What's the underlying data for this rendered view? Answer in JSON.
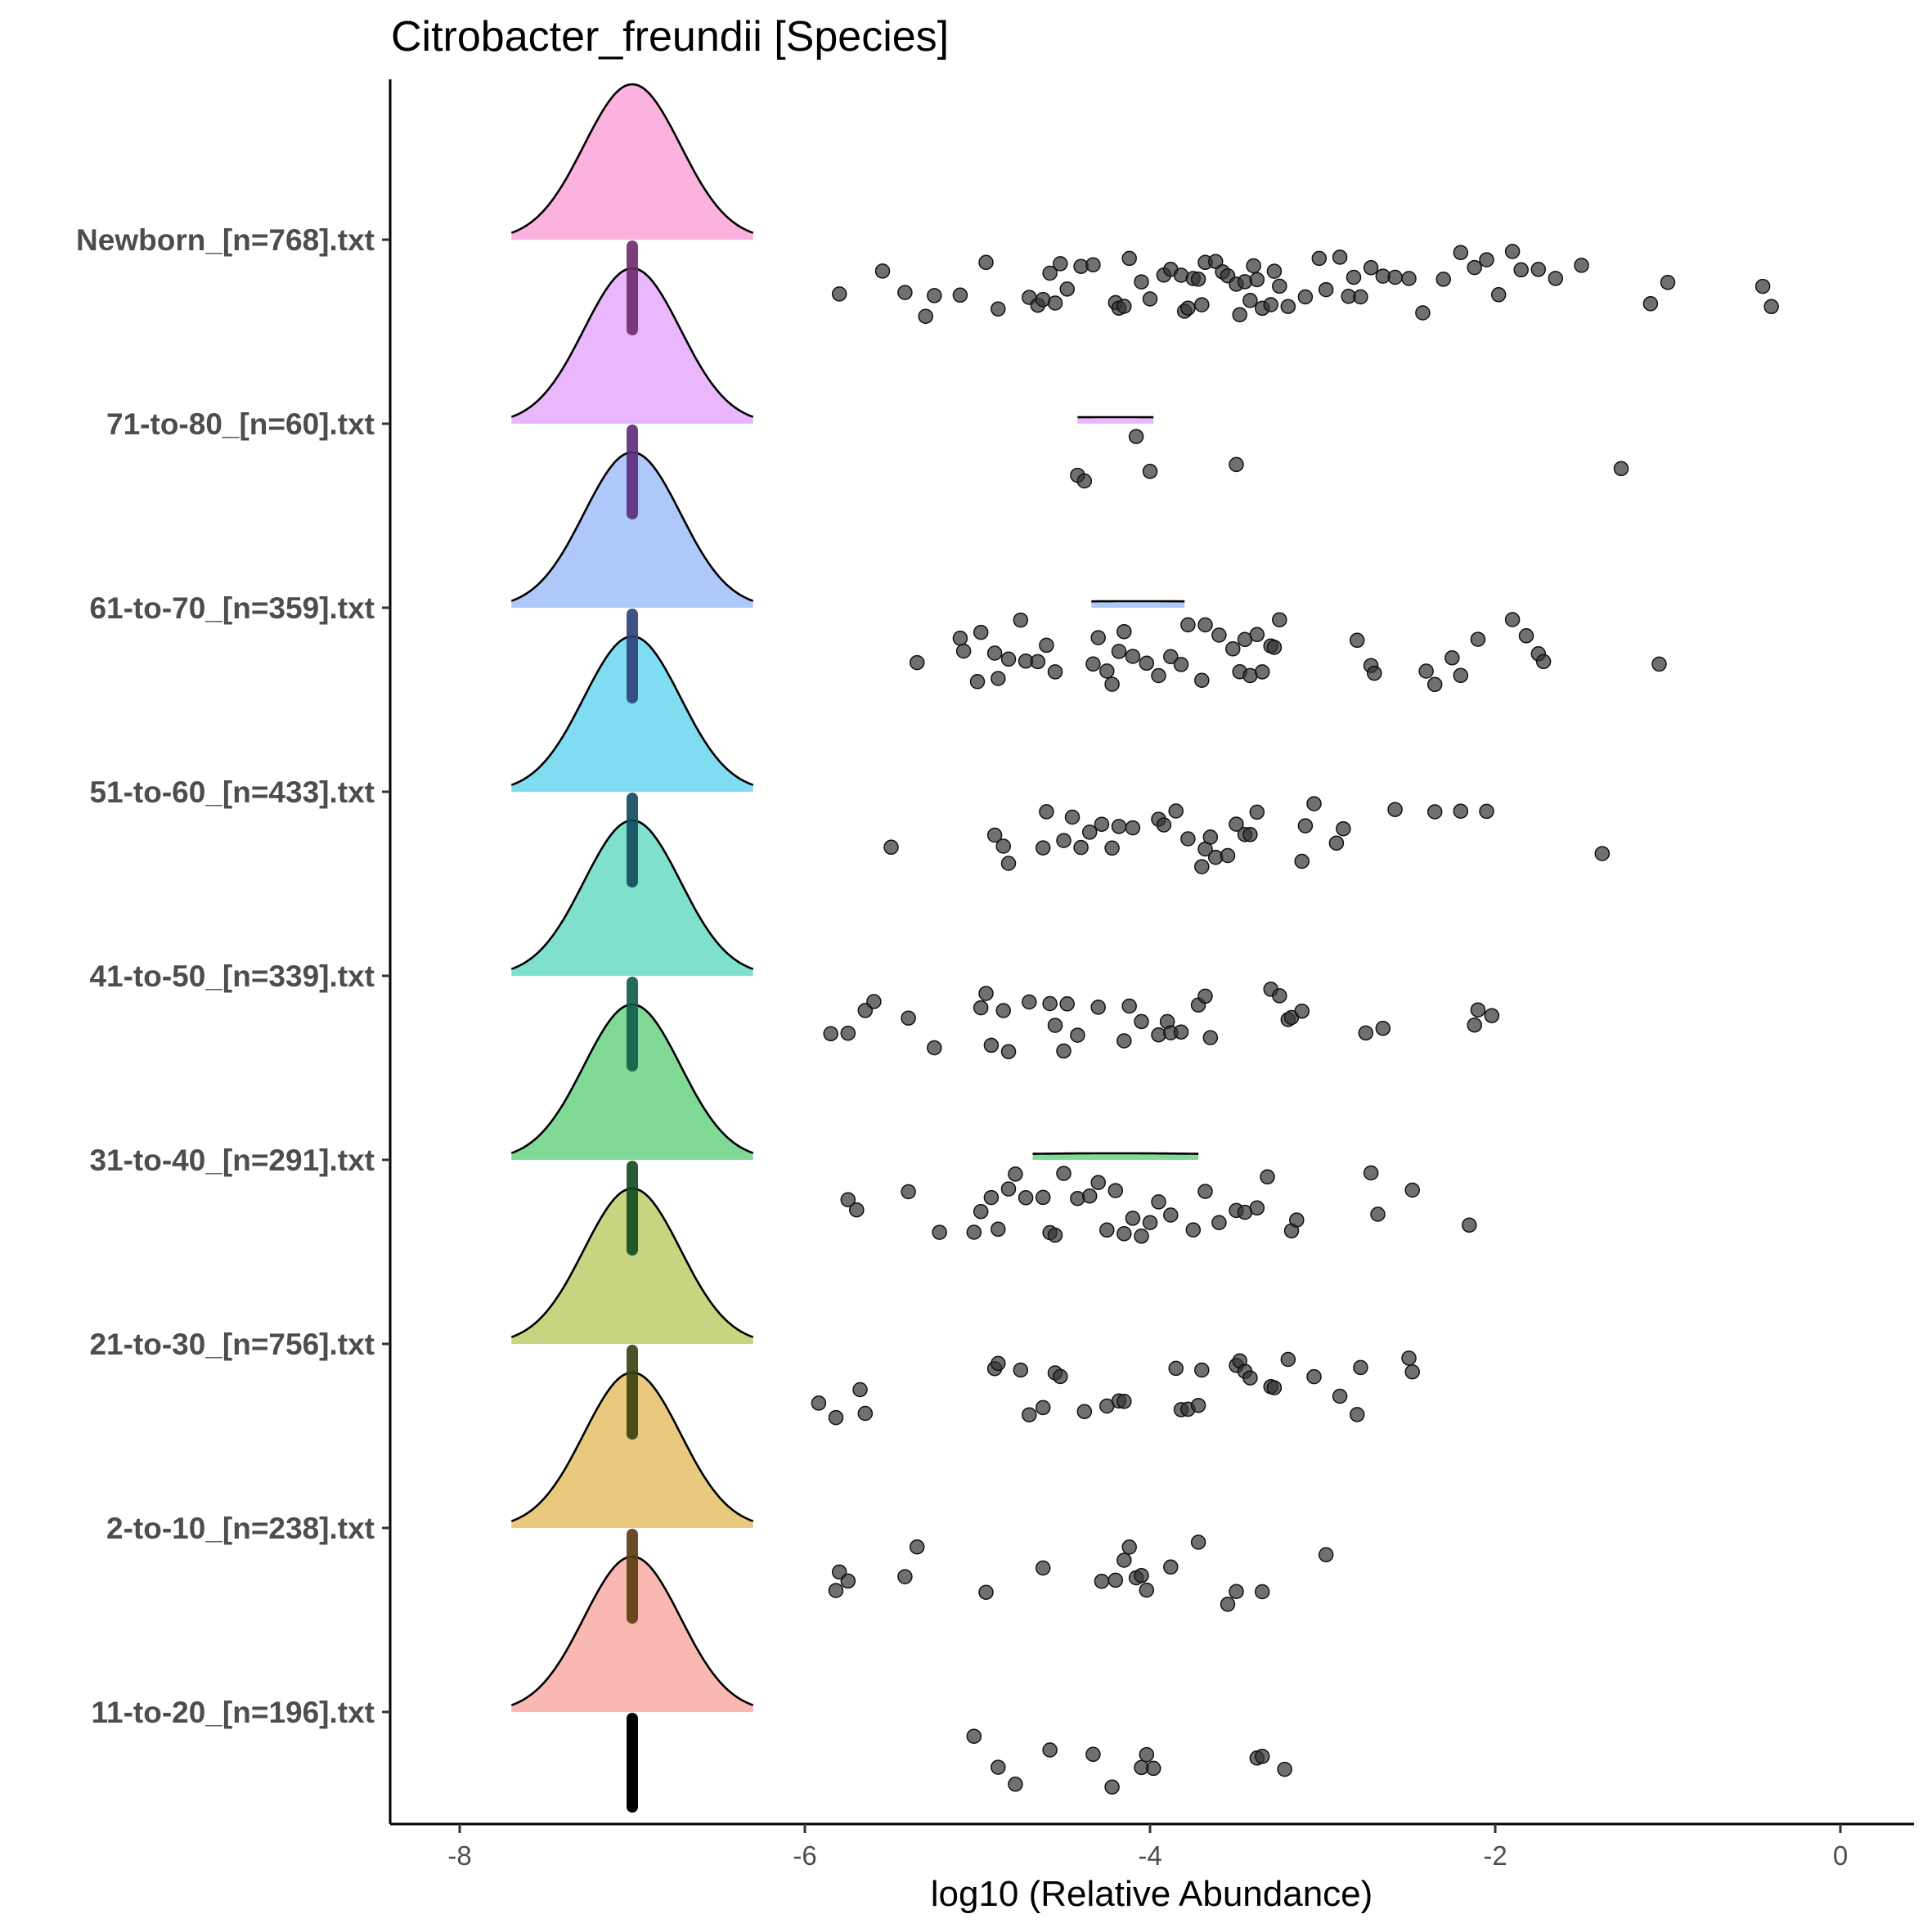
{
  "chart_data": {
    "type": "ridgeline-jitter",
    "title": "Citrobacter_freundii [Species]",
    "xlabel": "log10 (Relative Abundance)",
    "ylabel": "",
    "xlim": [
      -8.4,
      0.4
    ],
    "x_ticks": [
      -8,
      -6,
      -4,
      -2,
      0
    ],
    "x_tick_labels": [
      "-8",
      "-6",
      "-4",
      "-2",
      "0"
    ],
    "grid": false,
    "legend": "none",
    "point_color": "#333333",
    "groups": [
      {
        "label": "Newborn_[n=768].txt",
        "fill": "#FCB2DE",
        "median_color": "#6B2A6B",
        "peaks": [
          {
            "center": -7.0,
            "sd": 0.28,
            "halfwidth": 0.7
          }
        ],
        "points": [
          -5.8,
          -5.55,
          -5.42,
          -5.3,
          -5.25,
          -5.1,
          -4.95,
          -4.88,
          -4.7,
          -4.65,
          -4.62,
          -4.58,
          -4.55,
          -4.52,
          -4.48,
          -4.4,
          -4.33,
          -4.2,
          -4.18,
          -4.15,
          -4.12,
          -4.05,
          -4.0,
          -3.92,
          -3.88,
          -3.82,
          -3.8,
          -3.78,
          -3.75,
          -3.72,
          -3.7,
          -3.68,
          -3.62,
          -3.58,
          -3.55,
          -3.5,
          -3.48,
          -3.45,
          -3.42,
          -3.4,
          -3.38,
          -3.35,
          -3.3,
          -3.28,
          -3.25,
          -3.2,
          -3.1,
          -3.02,
          -2.98,
          -2.9,
          -2.85,
          -2.82,
          -2.78,
          -2.72,
          -2.65,
          -2.58,
          -2.5,
          -2.42,
          -2.3,
          -2.2,
          -2.12,
          -2.05,
          -1.98,
          -1.9,
          -1.85,
          -1.75,
          -1.65,
          -1.5,
          -1.1,
          -1.0,
          -0.45,
          -0.4
        ]
      },
      {
        "label": "71-to-80_[n=60].txt",
        "fill": "#EBB7FC",
        "median_color": "#5A2A7A",
        "peaks": [
          {
            "center": -7.0,
            "sd": 0.28,
            "halfwidth": 0.7
          },
          {
            "center": -4.2,
            "sd": 1.2,
            "halfwidth": 0.22
          }
        ],
        "points": [
          -4.42,
          -4.38,
          -4.08,
          -4.0,
          -3.5,
          -1.27
        ]
      },
      {
        "label": "61-to-70_[n=359].txt",
        "fill": "#AFC8FA",
        "median_color": "#2A3F7A",
        "peaks": [
          {
            "center": -7.0,
            "sd": 0.28,
            "halfwidth": 0.7
          },
          {
            "center": -4.07,
            "sd": 1.2,
            "halfwidth": 0.27
          }
        ],
        "points": [
          -5.35,
          -5.1,
          -5.08,
          -5.0,
          -4.98,
          -4.9,
          -4.88,
          -4.82,
          -4.75,
          -4.72,
          -4.65,
          -4.6,
          -4.55,
          -4.33,
          -4.3,
          -4.25,
          -4.22,
          -4.18,
          -4.15,
          -4.1,
          -4.02,
          -3.95,
          -3.88,
          -3.82,
          -3.78,
          -3.7,
          -3.68,
          -3.6,
          -3.52,
          -3.48,
          -3.45,
          -3.42,
          -3.38,
          -3.35,
          -3.3,
          -3.28,
          -3.25,
          -2.8,
          -2.72,
          -2.7,
          -2.4,
          -2.35,
          -2.25,
          -2.2,
          -2.1,
          -1.9,
          -1.82,
          -1.75,
          -1.72,
          -1.05
        ]
      },
      {
        "label": "51-to-60_[n=433].txt",
        "fill": "#80DCF0",
        "median_color": "#0E4A5A",
        "peaks": [
          {
            "center": -7.0,
            "sd": 0.28,
            "halfwidth": 0.7
          }
        ],
        "points": [
          -5.5,
          -4.9,
          -4.85,
          -4.82,
          -4.62,
          -4.6,
          -4.5,
          -4.45,
          -4.4,
          -4.35,
          -4.28,
          -4.22,
          -4.18,
          -4.1,
          -3.95,
          -3.92,
          -3.85,
          -3.78,
          -3.7,
          -3.68,
          -3.65,
          -3.62,
          -3.55,
          -3.5,
          -3.45,
          -3.42,
          -3.38,
          -3.12,
          -3.1,
          -3.05,
          -2.92,
          -2.88,
          -2.58,
          -2.35,
          -2.2,
          -2.05,
          -1.38
        ]
      },
      {
        "label": "41-to-50_[n=339].txt",
        "fill": "#80E0CE",
        "median_color": "#0E5A4A",
        "peaks": [
          {
            "center": -7.0,
            "sd": 0.28,
            "halfwidth": 0.7
          }
        ],
        "points": [
          -5.85,
          -5.75,
          -5.65,
          -5.6,
          -5.4,
          -5.25,
          -4.98,
          -4.95,
          -4.92,
          -4.85,
          -4.82,
          -4.7,
          -4.58,
          -4.55,
          -4.5,
          -4.48,
          -4.42,
          -4.3,
          -4.15,
          -4.12,
          -4.05,
          -3.95,
          -3.9,
          -3.88,
          -3.82,
          -3.72,
          -3.68,
          -3.65,
          -3.3,
          -3.25,
          -3.2,
          -3.18,
          -3.12,
          -2.75,
          -2.65,
          -2.12,
          -2.1,
          -2.02
        ]
      },
      {
        "label": "31-to-40_[n=291].txt",
        "fill": "#80DA96",
        "median_color": "#0E4A1E",
        "peaks": [
          {
            "center": -7.0,
            "sd": 0.28,
            "halfwidth": 0.7
          },
          {
            "center": -4.2,
            "sd": 1.2,
            "halfwidth": 0.48
          }
        ],
        "points": [
          -5.75,
          -5.7,
          -5.4,
          -5.22,
          -5.02,
          -4.98,
          -4.92,
          -4.88,
          -4.82,
          -4.78,
          -4.72,
          -4.62,
          -4.58,
          -4.55,
          -4.5,
          -4.42,
          -4.35,
          -4.3,
          -4.25,
          -4.2,
          -4.15,
          -4.1,
          -4.05,
          -4.0,
          -3.95,
          -3.88,
          -3.75,
          -3.68,
          -3.6,
          -3.5,
          -3.45,
          -3.38,
          -3.32,
          -3.18,
          -3.15,
          -2.72,
          -2.68,
          -2.48,
          -2.15
        ]
      },
      {
        "label": "21-to-30_[n=756].txt",
        "fill": "#C9D480",
        "median_color": "#3A3F0E",
        "peaks": [
          {
            "center": -7.0,
            "sd": 0.28,
            "halfwidth": 0.7
          }
        ],
        "points": [
          -5.92,
          -5.82,
          -5.68,
          -5.65,
          -4.9,
          -4.88,
          -4.75,
          -4.7,
          -4.62,
          -4.55,
          -4.52,
          -4.38,
          -4.25,
          -4.18,
          -4.15,
          -3.85,
          -3.82,
          -3.78,
          -3.72,
          -3.7,
          -3.5,
          -3.48,
          -3.45,
          -3.42,
          -3.3,
          -3.28,
          -3.2,
          -3.05,
          -2.9,
          -2.8,
          -2.78,
          -2.5,
          -2.48
        ]
      },
      {
        "label": "2-to-10_[n=238].txt",
        "fill": "#E8C97E",
        "median_color": "#5A3A0E",
        "peaks": [
          {
            "center": -7.0,
            "sd": 0.28,
            "halfwidth": 0.7
          }
        ],
        "points": [
          -5.82,
          -5.8,
          -5.75,
          -5.42,
          -5.35,
          -4.95,
          -4.62,
          -4.28,
          -4.2,
          -4.15,
          -4.12,
          -4.08,
          -4.05,
          -4.02,
          -3.88,
          -3.72,
          -3.55,
          -3.5,
          -3.35,
          -2.98
        ]
      },
      {
        "label": "11-to-20_[n=196].txt",
        "fill": "#F9B8B2",
        "median_color": "#6B2A2A",
        "peaks": [
          {
            "center": -7.0,
            "sd": 0.28,
            "halfwidth": 0.7
          }
        ],
        "points": [
          -5.02,
          -4.88,
          -4.78,
          -4.58,
          -4.33,
          -4.22,
          -4.05,
          -4.02,
          -3.98,
          -3.38,
          -3.35,
          -3.22
        ]
      }
    ]
  }
}
